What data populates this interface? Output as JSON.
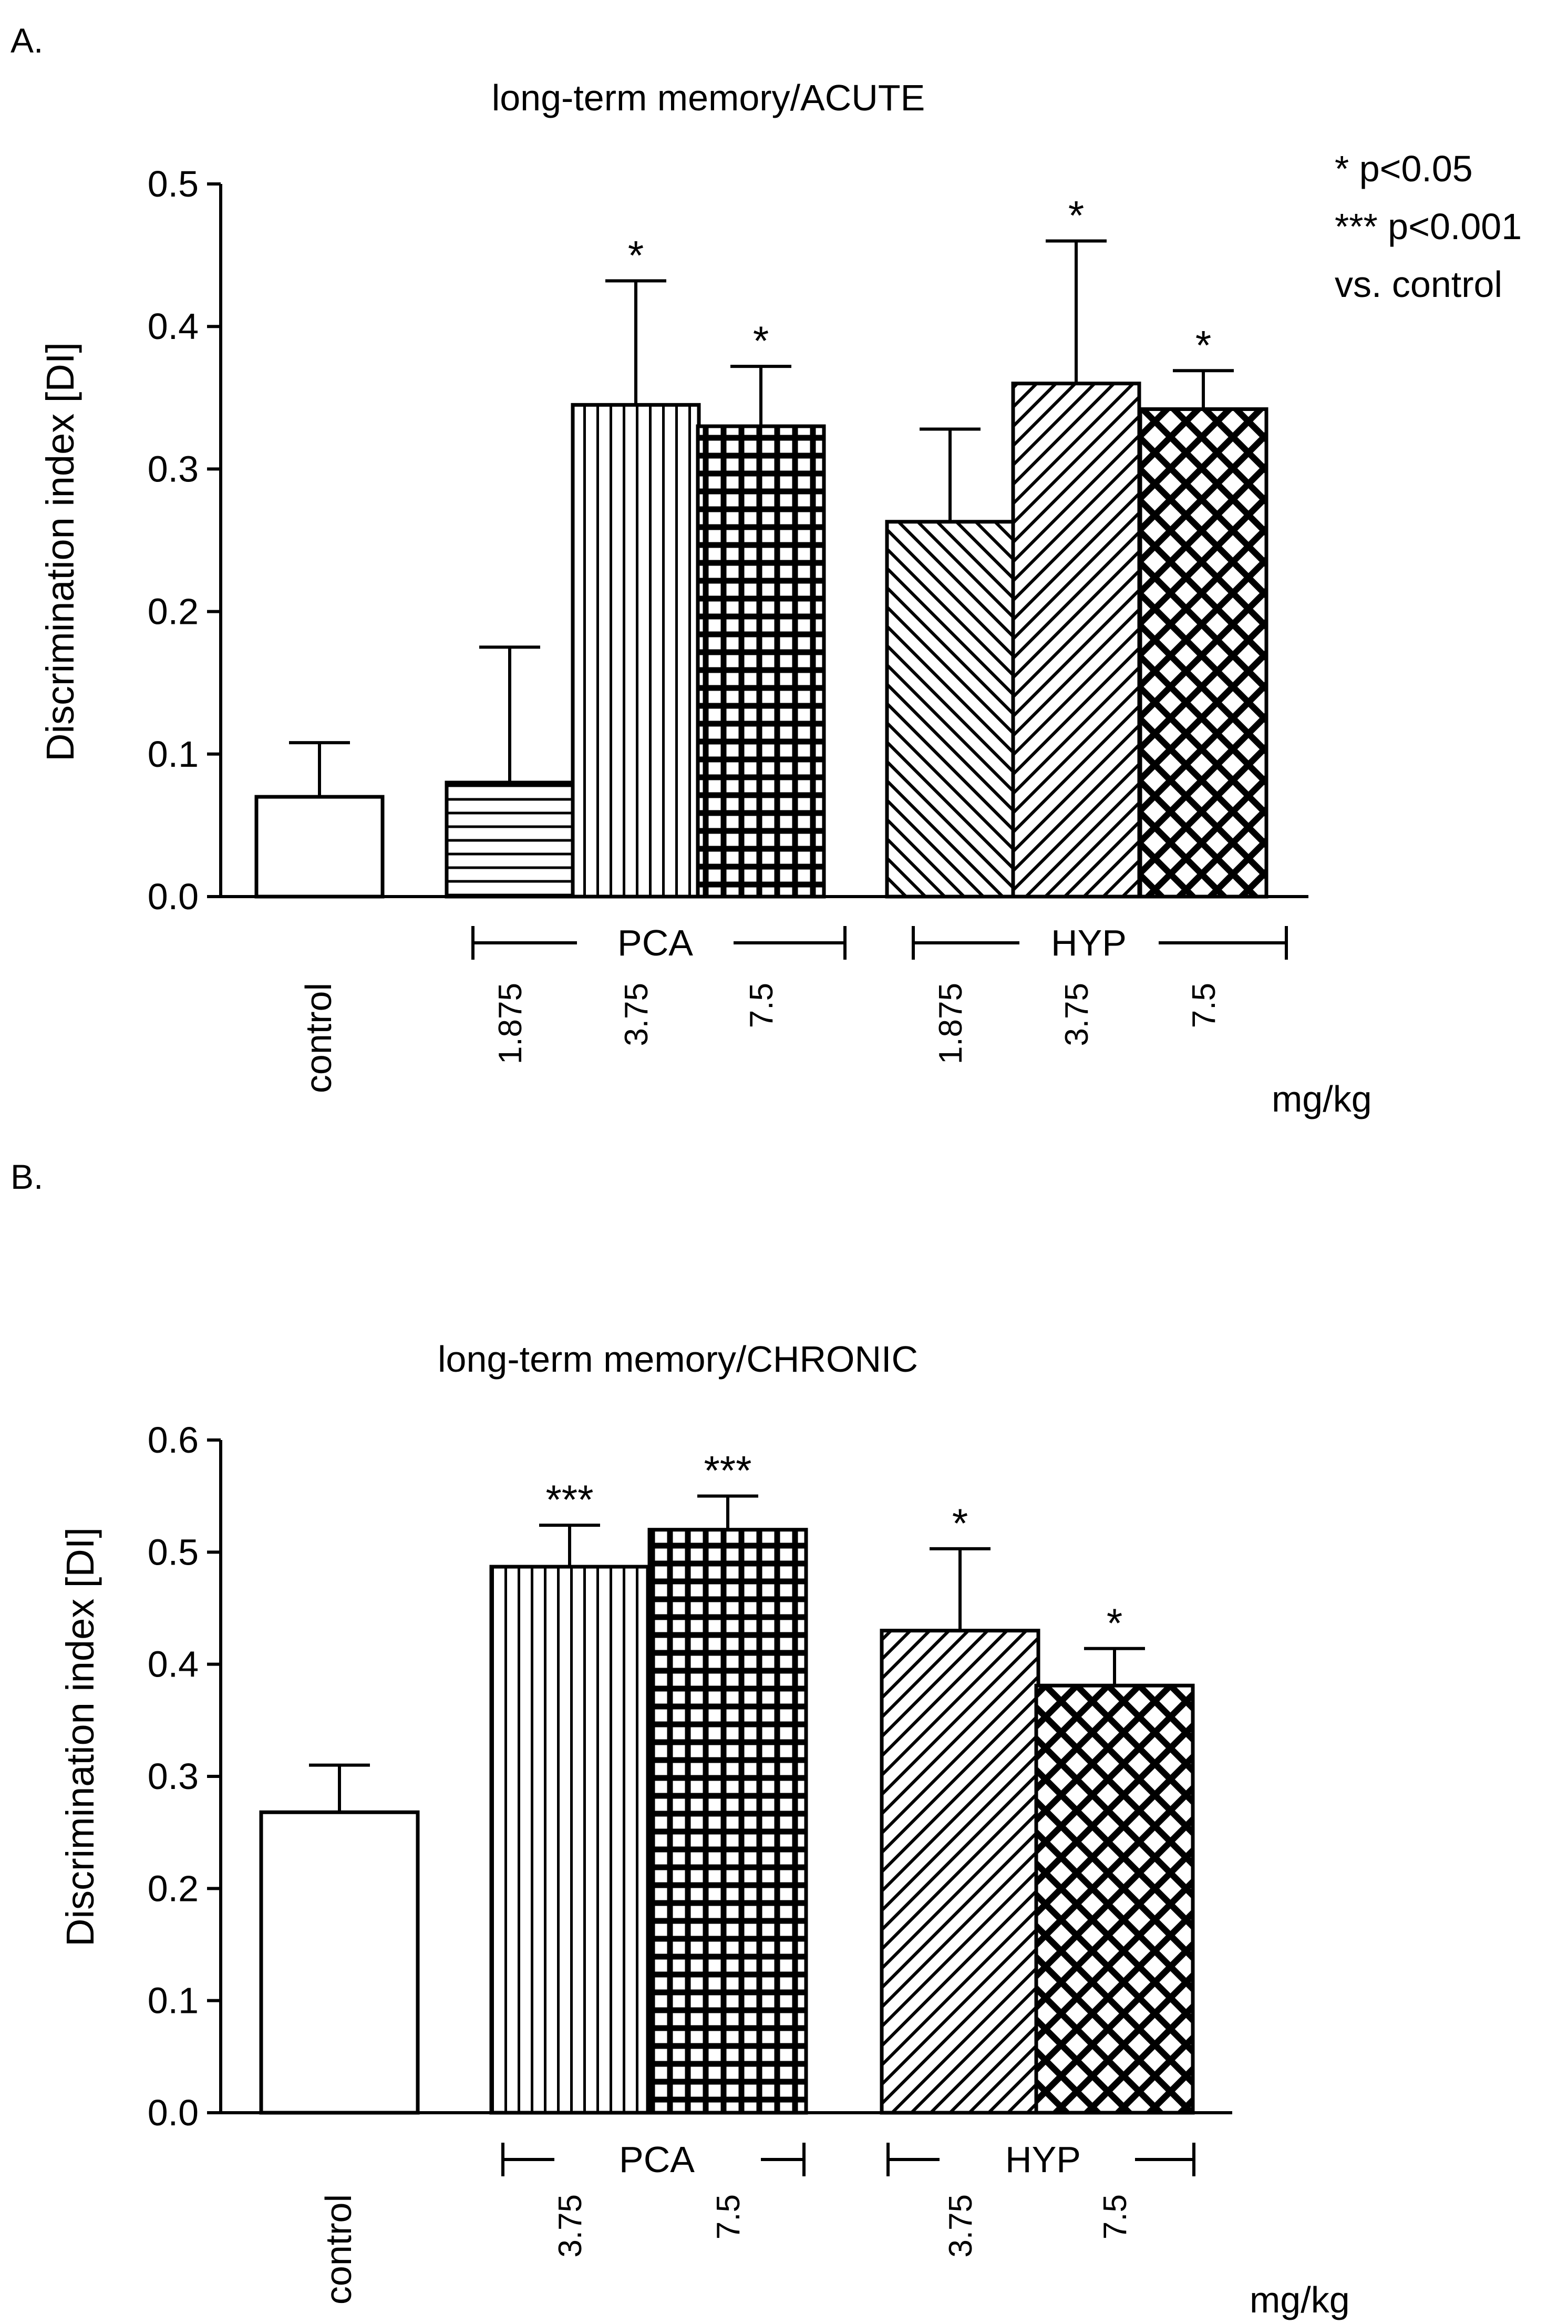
{
  "figure": {
    "stats_legend": [
      "* p<0.05",
      "*** p<0.001",
      "vs. control"
    ],
    "colors": {
      "ink": "#000000",
      "background": "#ffffff"
    }
  },
  "chart_data": [
    {
      "panel": "A.",
      "type": "bar",
      "title": "long-term memory/ACUTE",
      "ylabel": "Discrimination index [DI]",
      "unit_label": "mg/kg",
      "ylim": [
        0,
        0.5
      ],
      "yticks": [
        "0.0",
        "0.1",
        "0.2",
        "0.3",
        "0.4",
        "0.5"
      ],
      "categories": [
        "control",
        "1.875",
        "3.75",
        "7.5",
        "1.875",
        "3.75",
        "7.5"
      ],
      "values": [
        0.07,
        0.08,
        0.345,
        0.33,
        0.263,
        0.36,
        0.342
      ],
      "errors": [
        0.038,
        0.095,
        0.087,
        0.042,
        0.065,
        0.1,
        0.027
      ],
      "significance": [
        "",
        "",
        "*",
        "*",
        "",
        "*",
        "*"
      ],
      "patterns": [
        "none",
        "horizontal",
        "vertical",
        "grid",
        "diag-back",
        "diag-fwd",
        "crosshatch"
      ],
      "groups": [
        {
          "label": "PCA",
          "members": [
            1,
            2,
            3
          ]
        },
        {
          "label": "HYP",
          "members": [
            4,
            5,
            6
          ]
        }
      ]
    },
    {
      "panel": "B.",
      "type": "bar",
      "title": "long-term memory/CHRONIC",
      "ylabel": "Discrimination index [DI]",
      "unit_label": "mg/kg",
      "ylim": [
        0,
        0.6
      ],
      "yticks": [
        "0.0",
        "0.1",
        "0.2",
        "0.3",
        "0.4",
        "0.5",
        "0.6"
      ],
      "categories": [
        "control",
        "3.75",
        "7.5",
        "3.75",
        "7.5"
      ],
      "values": [
        0.268,
        0.487,
        0.52,
        0.43,
        0.381
      ],
      "errors": [
        0.042,
        0.037,
        0.03,
        0.073,
        0.033
      ],
      "significance": [
        "",
        "***",
        "***",
        "*",
        "*"
      ],
      "patterns": [
        "none",
        "vertical",
        "grid",
        "diag-fwd",
        "crosshatch"
      ],
      "groups": [
        {
          "label": "PCA",
          "members": [
            1,
            2
          ]
        },
        {
          "label": "HYP",
          "members": [
            3,
            4
          ]
        }
      ]
    }
  ]
}
